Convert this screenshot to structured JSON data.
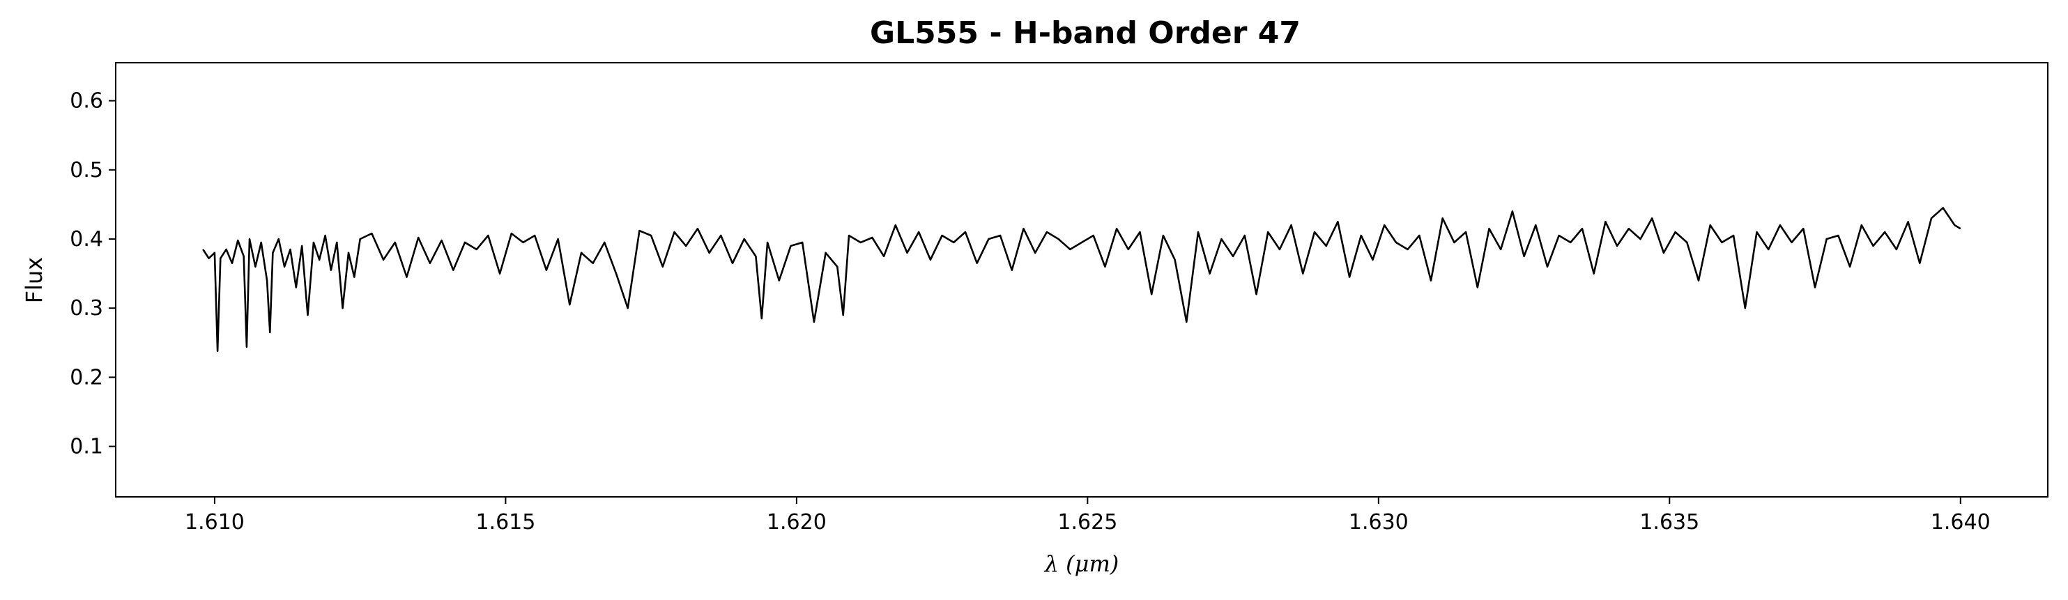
{
  "chart_data": {
    "type": "line",
    "title": "GL555 - H-band Order 47",
    "xlabel": "λ (μm)",
    "ylabel": "Flux",
    "xlim": [
      1.6083,
      1.6415
    ],
    "ylim": [
      0.027,
      0.655
    ],
    "xticks": [
      1.61,
      1.615,
      1.62,
      1.625,
      1.63,
      1.635,
      1.64
    ],
    "xtick_labels": [
      "1.610",
      "1.615",
      "1.620",
      "1.625",
      "1.630",
      "1.635",
      "1.640"
    ],
    "yticks": [
      0.1,
      0.2,
      0.3,
      0.4,
      0.5,
      0.6
    ],
    "ytick_labels": [
      "0.1",
      "0.2",
      "0.3",
      "0.4",
      "0.5",
      "0.6"
    ],
    "grid": false,
    "line_color": "#000000",
    "series": [
      {
        "x": [
          1.6098,
          1.6099,
          1.61,
          1.61005,
          1.6101,
          1.6102,
          1.6103,
          1.6104,
          1.6105,
          1.61055,
          1.6106,
          1.6107,
          1.6108,
          1.6109,
          1.61095,
          1.611,
          1.6111,
          1.6112,
          1.6113,
          1.6114,
          1.6115,
          1.6116,
          1.6117,
          1.6118,
          1.6119,
          1.612,
          1.6121,
          1.6122,
          1.6123,
          1.6124,
          1.6125,
          1.6127,
          1.6129,
          1.6131,
          1.6133,
          1.6135,
          1.6137,
          1.6139,
          1.6141,
          1.6143,
          1.6145,
          1.6147,
          1.6149,
          1.6151,
          1.6153,
          1.6155,
          1.6157,
          1.6159,
          1.6161,
          1.6163,
          1.6165,
          1.6167,
          1.6169,
          1.6171,
          1.6173,
          1.6175,
          1.6177,
          1.6179,
          1.6181,
          1.6183,
          1.6185,
          1.6187,
          1.6189,
          1.6191,
          1.6193,
          1.6194,
          1.6195,
          1.6197,
          1.6199,
          1.6201,
          1.6203,
          1.6205,
          1.6207,
          1.6208,
          1.6209,
          1.6211,
          1.6213,
          1.6215,
          1.6217,
          1.6219,
          1.6221,
          1.6223,
          1.6225,
          1.6227,
          1.6229,
          1.6231,
          1.6233,
          1.6235,
          1.6237,
          1.6239,
          1.6241,
          1.6243,
          1.6245,
          1.6247,
          1.6249,
          1.6251,
          1.6253,
          1.6255,
          1.6257,
          1.6259,
          1.6261,
          1.6263,
          1.6265,
          1.6267,
          1.6269,
          1.6271,
          1.6273,
          1.6275,
          1.6277,
          1.6279,
          1.6281,
          1.6283,
          1.6285,
          1.6287,
          1.6289,
          1.6291,
          1.6293,
          1.6295,
          1.6297,
          1.6299,
          1.6301,
          1.6303,
          1.6305,
          1.6307,
          1.6309,
          1.6311,
          1.6313,
          1.6315,
          1.6317,
          1.6319,
          1.6321,
          1.6323,
          1.6325,
          1.6327,
          1.6329,
          1.6331,
          1.6333,
          1.6335,
          1.6337,
          1.6339,
          1.6341,
          1.6343,
          1.6345,
          1.6347,
          1.6349,
          1.6351,
          1.6353,
          1.6355,
          1.6357,
          1.6359,
          1.6361,
          1.6363,
          1.6365,
          1.6367,
          1.6369,
          1.6371,
          1.6373,
          1.6375,
          1.6377,
          1.6379,
          1.6381,
          1.6383,
          1.6385,
          1.6387,
          1.6389,
          1.6391,
          1.6393,
          1.6395,
          1.6397,
          1.6399,
          1.64
        ],
        "y": [
          0.385,
          0.372,
          0.38,
          0.238,
          0.372,
          0.385,
          0.365,
          0.398,
          0.375,
          0.244,
          0.4,
          0.36,
          0.395,
          0.34,
          0.265,
          0.38,
          0.4,
          0.36,
          0.385,
          0.33,
          0.39,
          0.29,
          0.395,
          0.37,
          0.405,
          0.355,
          0.395,
          0.3,
          0.38,
          0.345,
          0.4,
          0.408,
          0.37,
          0.395,
          0.345,
          0.402,
          0.365,
          0.398,
          0.355,
          0.395,
          0.385,
          0.405,
          0.35,
          0.408,
          0.395,
          0.405,
          0.355,
          0.4,
          0.305,
          0.38,
          0.365,
          0.395,
          0.35,
          0.3,
          0.412,
          0.405,
          0.36,
          0.41,
          0.39,
          0.415,
          0.38,
          0.405,
          0.365,
          0.4,
          0.375,
          0.285,
          0.395,
          0.34,
          0.39,
          0.395,
          0.28,
          0.38,
          0.36,
          0.29,
          0.405,
          0.395,
          0.402,
          0.375,
          0.42,
          0.38,
          0.41,
          0.37,
          0.405,
          0.395,
          0.41,
          0.365,
          0.4,
          0.405,
          0.355,
          0.415,
          0.38,
          0.41,
          0.4,
          0.385,
          0.395,
          0.405,
          0.36,
          0.415,
          0.385,
          0.41,
          0.32,
          0.405,
          0.37,
          0.28,
          0.41,
          0.35,
          0.4,
          0.375,
          0.405,
          0.32,
          0.41,
          0.385,
          0.42,
          0.35,
          0.41,
          0.39,
          0.425,
          0.345,
          0.405,
          0.37,
          0.42,
          0.395,
          0.385,
          0.405,
          0.34,
          0.43,
          0.395,
          0.41,
          0.33,
          0.415,
          0.385,
          0.44,
          0.375,
          0.42,
          0.36,
          0.405,
          0.395,
          0.415,
          0.35,
          0.425,
          0.39,
          0.415,
          0.4,
          0.43,
          0.38,
          0.41,
          0.395,
          0.34,
          0.42,
          0.395,
          0.405,
          0.3,
          0.41,
          0.385,
          0.42,
          0.395,
          0.415,
          0.33,
          0.4,
          0.405,
          0.36,
          0.42,
          0.39,
          0.41,
          0.385,
          0.425,
          0.365,
          0.43,
          0.445,
          0.42,
          0.415
        ]
      }
    ]
  }
}
